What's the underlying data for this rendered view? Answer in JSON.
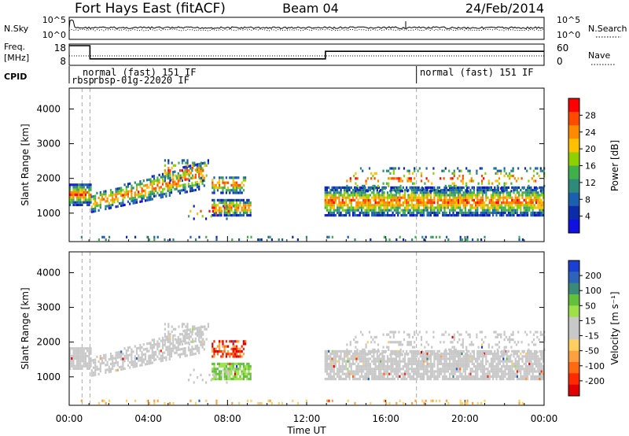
{
  "header": {
    "station": "Fort Hays East (fitACF)",
    "beam": "Beam 04",
    "date": "24/Feb/2014"
  },
  "strip_panels": {
    "nsky_label": "N.Sky",
    "nsearch_label": "N.Search",
    "freq_label_1": "Freq.",
    "freq_label_2": "[MHz]",
    "nave_label": "Nave",
    "cpid_label": "CPID",
    "nsky_left_ticks": [
      "10^5",
      "10^0"
    ],
    "nsky_right_ticks": [
      "10^5",
      "10^0"
    ],
    "freq_left_ticks": [
      "18",
      "8"
    ],
    "freq_right_ticks": [
      "60",
      "0"
    ],
    "cpid_labels": [
      "normal (fast) 151 IF",
      "rbsp",
      "rbsp-01g-22020 IF",
      "normal (fast) 151 IF"
    ]
  },
  "colorbars": {
    "power": {
      "title": "Power [dB]",
      "ticks": [
        "28",
        "24",
        "20",
        "16",
        "12",
        "8",
        "4"
      ],
      "colors": [
        "#ff0000",
        "#ff4a00",
        "#ff8a00",
        "#ffc000",
        "#8fd000",
        "#3fb04a",
        "#2e8b7a",
        "#1a5fb0",
        "#0b2ba8",
        "#1010e0"
      ]
    },
    "velocity": {
      "title": "Velocity [m s⁻¹]",
      "ticks": [
        "200",
        "100",
        "50",
        "15",
        "-15",
        "-50",
        "-100",
        "-200"
      ],
      "colors": [
        "#1b3fd0",
        "#2d63b8",
        "#3a8a7a",
        "#62c03a",
        "#9ee04a",
        "#c8c8c8",
        "#c8c8c8",
        "#ffd060",
        "#ffa040",
        "#ff6a10",
        "#ff2a00",
        "#e00000"
      ]
    }
  },
  "chart_data": [
    {
      "type": "heatmap",
      "title": "Power",
      "xlabel": "Time UT",
      "ylabel": "Slant Range [km]",
      "xlim": [
        "00:00",
        "24:00"
      ],
      "ylim": [
        180,
        4600
      ],
      "x_ticks": [
        "00:00",
        "04:00",
        "08:00",
        "12:00",
        "16:00",
        "20:00",
        "00:00"
      ],
      "y_ticks": [
        "1000",
        "2000",
        "3000",
        "4000"
      ],
      "colorbar": "Power [dB]",
      "scale_range": [
        0,
        30
      ]
    },
    {
      "type": "heatmap",
      "title": "Velocity",
      "xlabel": "Time UT",
      "ylabel": "Slant Range [km]",
      "xlim": [
        "00:00",
        "24:00"
      ],
      "ylim": [
        180,
        4600
      ],
      "x_ticks": [
        "00:00",
        "04:00",
        "08:00",
        "12:00",
        "16:00",
        "20:00",
        "00:00"
      ],
      "y_ticks": [
        "1000",
        "2000",
        "3000",
        "4000"
      ],
      "colorbar": "Velocity [m s⁻¹]",
      "scale_range": [
        -200,
        200
      ]
    }
  ],
  "frequency_series": {
    "x_hours": [
      0,
      1.05,
      1.05,
      12.95,
      12.95,
      24
    ],
    "freq_mhz": [
      18,
      18,
      11,
      11,
      15,
      15
    ]
  },
  "mode_boundaries_hours": [
    0.65,
    1.05,
    17.55
  ]
}
